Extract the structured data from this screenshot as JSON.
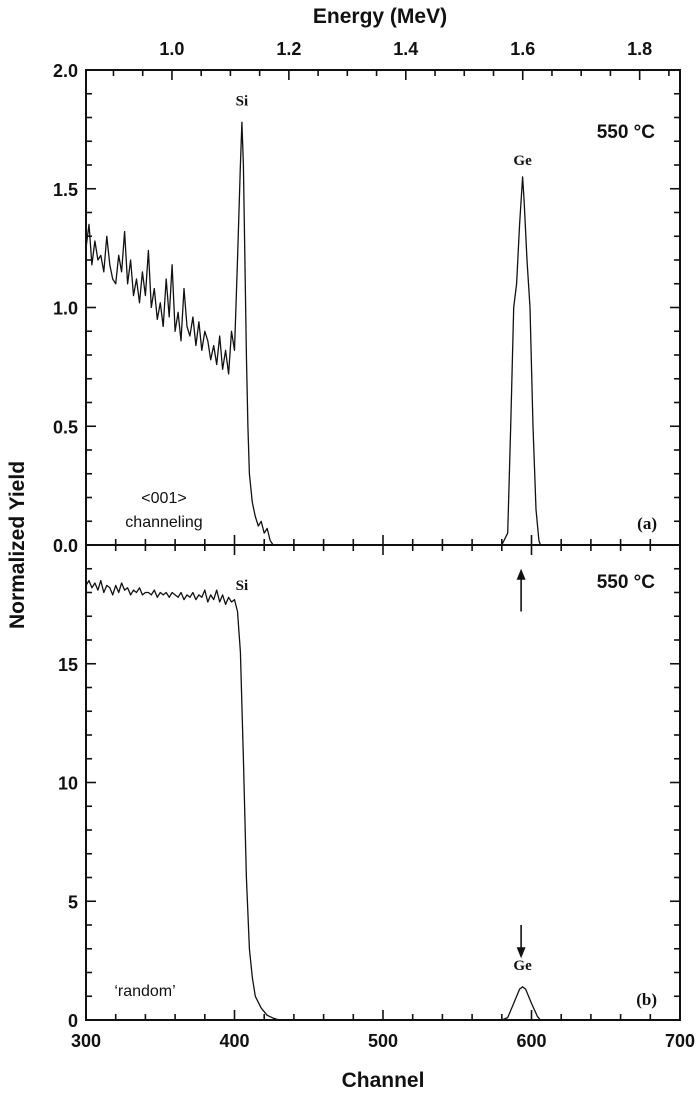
{
  "chart_data": {
    "type": "line",
    "xlabel": "Channel",
    "ylabel": "Normalized Yield",
    "top_xlabel": "Energy (MeV)",
    "xlim": [
      300,
      700
    ],
    "xticks": [
      "300",
      "400",
      "500",
      "600",
      "700"
    ],
    "top_xlim": [
      0.853,
      1.869
    ],
    "top_xticks": [
      "1.0",
      "1.2",
      "1.4",
      "1.6",
      "1.8"
    ],
    "grid": false,
    "panels": [
      {
        "id": "a",
        "panel_label": "(a)",
        "temperature": "550 °C",
        "condition": [
          "<001>",
          "channeling"
        ],
        "ylim": [
          0,
          2.0
        ],
        "yticks": [
          "0.0",
          "0.5",
          "1.0",
          "1.5",
          "2.0"
        ],
        "peak_labels": [
          {
            "text": "Si",
            "x": 405,
            "y": 1.85
          },
          {
            "text": "Ge",
            "x": 594,
            "y": 1.6
          }
        ],
        "series": [
          {
            "x": [
              300,
              302,
              304,
              306,
              308,
              310,
              312,
              314,
              316,
              318,
              320,
              322,
              324,
              326,
              328,
              330,
              332,
              334,
              336,
              338,
              340,
              342,
              344,
              346,
              348,
              350,
              352,
              354,
              356,
              358,
              360,
              362,
              364,
              366,
              368,
              370,
              372,
              374,
              376,
              378,
              380,
              382,
              384,
              386,
              388,
              390,
              392,
              394,
              396,
              398,
              400,
              402,
              404,
              405,
              406,
              407,
              408,
              409,
              410,
              412,
              414,
              416,
              418,
              420,
              422,
              424,
              426,
              580,
              584,
              586,
              588,
              590,
              592,
              594,
              595,
              597,
              599,
              601,
              603,
              605,
              606,
              700
            ],
            "y": [
              1.25,
              1.35,
              1.18,
              1.28,
              1.2,
              1.22,
              1.15,
              1.3,
              1.18,
              1.12,
              1.1,
              1.22,
              1.15,
              1.32,
              1.1,
              1.2,
              1.05,
              1.12,
              1.02,
              1.15,
              1.05,
              1.24,
              1.0,
              1.08,
              0.95,
              1.02,
              0.92,
              1.12,
              0.96,
              1.18,
              0.9,
              0.98,
              0.86,
              1.08,
              0.92,
              0.88,
              0.96,
              0.84,
              0.94,
              0.82,
              0.9,
              0.86,
              0.78,
              0.84,
              0.76,
              0.88,
              0.74,
              0.82,
              0.72,
              0.9,
              0.82,
              1.2,
              1.6,
              1.78,
              1.6,
              1.2,
              0.8,
              0.5,
              0.3,
              0.18,
              0.12,
              0.08,
              0.1,
              0.05,
              0.07,
              0.02,
              0.0,
              0.0,
              0.05,
              0.5,
              1.0,
              1.1,
              1.35,
              1.55,
              1.45,
              1.2,
              1.0,
              0.5,
              0.15,
              0.02,
              0.0,
              0.0
            ]
          }
        ]
      },
      {
        "id": "b",
        "panel_label": "(b)",
        "temperature": "550 °C",
        "condition": [
          "‘random’"
        ],
        "ylim": [
          0,
          20
        ],
        "yticks": [
          "0",
          "5",
          "10",
          "15"
        ],
        "peak_labels": [
          {
            "text": "Si",
            "x": 405,
            "y": 18.1
          },
          {
            "text": "Ge",
            "x": 594,
            "y": 2.1
          }
        ],
        "arrows": [
          {
            "x": 593,
            "from": 17.2,
            "to": 19.0,
            "direction": "up"
          },
          {
            "x": 593,
            "from": 4.0,
            "to": 2.6,
            "direction": "down"
          }
        ],
        "series": [
          {
            "x": [
              300,
              302,
              304,
              306,
              308,
              310,
              312,
              314,
              316,
              318,
              320,
              322,
              324,
              326,
              328,
              330,
              332,
              334,
              336,
              338,
              340,
              342,
              344,
              346,
              348,
              350,
              352,
              354,
              356,
              358,
              360,
              362,
              364,
              366,
              368,
              370,
              372,
              374,
              376,
              378,
              380,
              382,
              384,
              386,
              388,
              390,
              392,
              394,
              396,
              398,
              400,
              402,
              404,
              406,
              408,
              410,
              412,
              414,
              418,
              422,
              426,
              430,
              580,
              584,
              588,
              592,
              594,
              596,
              600,
              604,
              606,
              700
            ],
            "y": [
              18.3,
              18.5,
              18.2,
              18.4,
              18.1,
              18.5,
              18.0,
              18.3,
              18.2,
              17.9,
              18.3,
              18.0,
              18.4,
              18.1,
              18.2,
              17.9,
              18.1,
              18.0,
              18.2,
              17.9,
              18.0,
              18.0,
              17.9,
              18.1,
              17.8,
              18.0,
              17.9,
              18.0,
              17.8,
              18.0,
              17.9,
              17.8,
              18.0,
              17.7,
              17.9,
              17.8,
              18.0,
              17.7,
              17.9,
              17.8,
              18.1,
              17.6,
              17.9,
              17.7,
              18.1,
              17.6,
              17.9,
              17.5,
              17.8,
              17.6,
              17.7,
              17.2,
              15.5,
              11,
              6,
              3,
              1.8,
              1.0,
              0.5,
              0.2,
              0.08,
              0,
              0,
              0.1,
              0.7,
              1.3,
              1.4,
              1.3,
              0.7,
              0.15,
              0,
              0
            ]
          }
        ]
      }
    ]
  }
}
